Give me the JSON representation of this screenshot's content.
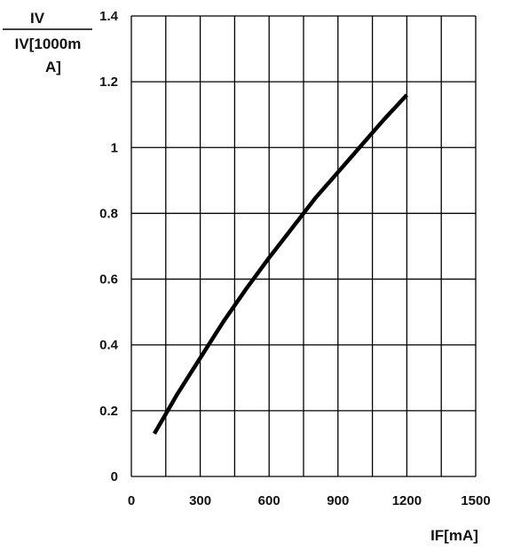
{
  "chart_data": {
    "type": "line",
    "title": "",
    "xlabel": "IF[mA]",
    "ylabel_numerator": "IV",
    "ylabel_denominator_lines": [
      "IV[1000m",
      "A]"
    ],
    "xlim": [
      0,
      1500
    ],
    "ylim": [
      0,
      1.4
    ],
    "x_ticks": [
      0,
      300,
      600,
      900,
      1200,
      1500
    ],
    "x_tick_labels": [
      "0",
      "300",
      "600",
      "900",
      "1200",
      "1500"
    ],
    "y_ticks": [
      0,
      0.2,
      0.4,
      0.6,
      0.8,
      1.0,
      1.2,
      1.4
    ],
    "y_tick_labels": [
      "0",
      "0.2",
      "0.4",
      "0.6",
      "0.8",
      "1",
      "1.2",
      "1.4"
    ],
    "grid": true,
    "legend": "none",
    "series": [
      {
        "color": "#000000",
        "x": [
          100,
          150,
          200,
          300,
          400,
          500,
          600,
          700,
          800,
          900,
          1000,
          1100,
          1200
        ],
        "y": [
          0.13,
          0.19,
          0.25,
          0.36,
          0.47,
          0.57,
          0.665,
          0.755,
          0.845,
          0.925,
          1.005,
          1.085,
          1.16
        ]
      }
    ]
  }
}
